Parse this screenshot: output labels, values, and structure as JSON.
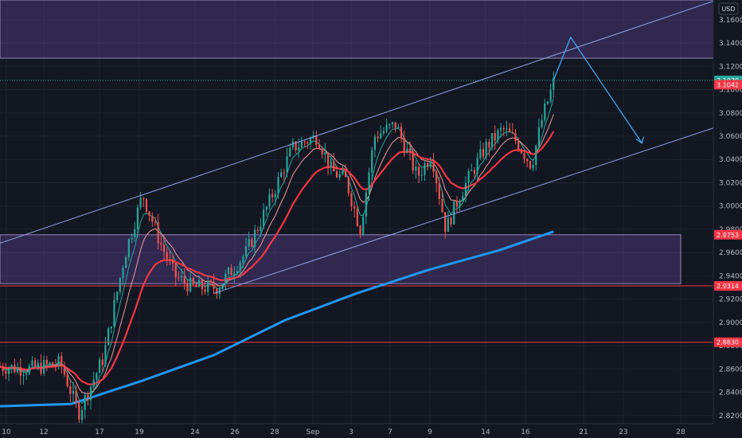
{
  "currency_label": "USD",
  "chart_data": {
    "type": "candlestick",
    "x_tick_labels": [
      "10",
      "12",
      "17",
      "19",
      "24",
      "26",
      "28",
      "Sep",
      "3",
      "7",
      "9",
      "14",
      "16",
      "21",
      "23",
      "28"
    ],
    "y_ticks": [
      2.82,
      2.84,
      2.86,
      2.88,
      2.9,
      2.92,
      2.94,
      2.96,
      2.98,
      3.0,
      3.02,
      3.04,
      3.06,
      3.08,
      3.1,
      3.12,
      3.14,
      3.16
    ],
    "y_tick_labels": [
      "2.8200",
      "2.8400",
      "2.8600",
      "2.8800",
      "2.9000",
      "2.9200",
      "2.9400",
      "2.9600",
      "2.9800",
      "3.0000",
      "3.0200",
      "3.0400",
      "3.0600",
      "3.0800",
      "3.1000",
      "3.1200",
      "3.1400",
      "3.1600"
    ],
    "ylim": [
      2.813,
      3.177
    ],
    "last_price": {
      "value": 3.1079,
      "label": "3.1079",
      "color": "#26a69a"
    },
    "price_tags": [
      {
        "value": 3.1042,
        "label": "3.1042",
        "color": "#f23645"
      },
      {
        "value": 2.9753,
        "label": "2.9753",
        "color": "#f23645"
      },
      {
        "value": 2.9314,
        "label": "2.9314",
        "color": "#f23645"
      },
      {
        "value": 2.883,
        "label": "2.8830",
        "color": "#f23645"
      }
    ],
    "horizontal_lines": [
      {
        "value": 2.9314,
        "color": "#f23645"
      },
      {
        "value": 2.883,
        "color": "#f23645"
      }
    ],
    "zones": [
      {
        "from": 3.127,
        "to": 3.177,
        "color": "#7e57c2"
      },
      {
        "from": 2.9333,
        "to": 2.9753,
        "color": "#7e57c2"
      }
    ],
    "channel": {
      "upper": [
        [
          0.0,
          2.968
        ],
        [
          1.0,
          3.176
        ]
      ],
      "lower": [
        [
          0.3,
          2.925
        ],
        [
          1.0,
          3.067
        ]
      ]
    },
    "projection": [
      [
        0.776,
        3.108
      ],
      [
        0.8,
        3.145
      ],
      [
        0.9,
        3.054
      ]
    ],
    "bull_color": "#26a69a",
    "bear_color": "#ef5350",
    "ma_colors": {
      "fast": "#26a69a",
      "mid": "#ef9a9a",
      "slow": "#f23645",
      "long": "#2196f3"
    }
  }
}
